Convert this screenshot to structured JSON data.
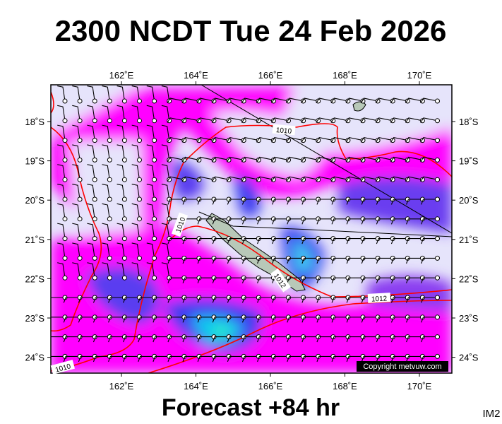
{
  "header": {
    "title": "2300 NCDT Tue 24 Feb 2026"
  },
  "footer": {
    "text": "Forecast +84 hr",
    "code": "IM2"
  },
  "axes": {
    "longitudes": [
      "162˚E",
      "164˚E",
      "166˚E",
      "168˚E",
      "170˚E"
    ],
    "latitudes": [
      "18˚S",
      "19˚S",
      "20˚S",
      "21˚S",
      "22˚S",
      "23˚S",
      "24˚S"
    ]
  },
  "contour_labels": [
    "1010",
    "1010",
    "1012",
    "1012",
    "1010"
  ],
  "copyright": "Copyright metvuw.com"
}
